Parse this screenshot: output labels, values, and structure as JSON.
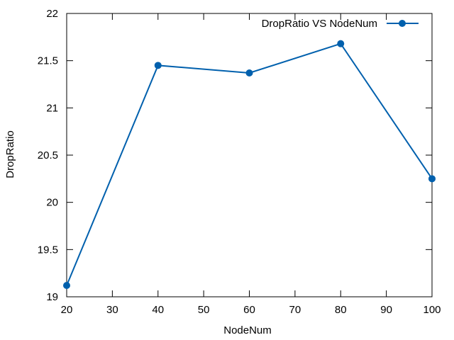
{
  "chart_data": {
    "type": "line",
    "xlabel": "NodeNum",
    "ylabel": "DropRatio",
    "xlim": [
      20,
      100
    ],
    "ylim": [
      19,
      22
    ],
    "xticks": [
      20,
      30,
      40,
      50,
      60,
      70,
      80,
      90,
      100
    ],
    "yticks": [
      19,
      19.5,
      20,
      20.5,
      21,
      21.5,
      22
    ],
    "grid": false,
    "legend_position": "top-right",
    "series": [
      {
        "name": "DropRatio VS NodeNum",
        "color": "#0060ad",
        "marker": "circle",
        "x": [
          20,
          40,
          60,
          80,
          100
        ],
        "y": [
          19.12,
          21.45,
          21.37,
          21.68,
          20.25
        ]
      }
    ]
  }
}
